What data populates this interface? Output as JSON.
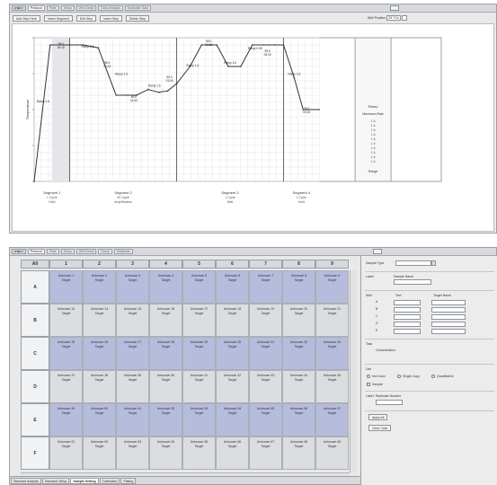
{
  "top": {
    "tabs": [
      "ʟғʙᴍ ʏ",
      "Protocol",
      "Plate",
      "Setup",
      "Well Detail",
      "Data Analysis",
      "Multiplate Data"
    ],
    "toolbar": [
      "Add Step Here",
      "Insert Segment",
      "Edit Step",
      "Insert Step",
      "Delete Step"
    ],
    "right_label": "Well Position",
    "right_value": "25 °C/s"
  },
  "chart_data": {
    "type": "line",
    "title": "",
    "xlabel": "",
    "ylabel": "Temperature",
    "ylim": [
      0,
      100
    ],
    "steps": [
      {
        "name": "Segment 1",
        "lines": [
          "1 Cycle",
          "Hold"
        ],
        "x_range": [
          0,
          40
        ]
      },
      {
        "name": "Segment 2",
        "lines": [
          "40 Cycle",
          "Amplification"
        ],
        "x_range": [
          40,
          160
        ]
      },
      {
        "name": "Segment 3",
        "lines": [
          "1 Cycle",
          "Melt"
        ],
        "x_range": [
          160,
          280
        ]
      },
      {
        "name": "Segment 4",
        "lines": [
          "1 Cycle",
          "Hold"
        ],
        "x_range": [
          280,
          320
        ]
      }
    ],
    "series": [
      {
        "name": "Temperature",
        "x": [
          0,
          18,
          40,
          55,
          72,
          92,
          105,
          115,
          128,
          140,
          150,
          160,
          175,
          188,
          205,
          218,
          232,
          245,
          258,
          270,
          280,
          292,
          302,
          320
        ],
        "y": [
          0,
          95,
          95,
          95,
          93,
          60,
          60,
          60,
          64,
          62,
          63,
          68,
          80,
          95,
          95,
          80,
          80,
          95,
          95,
          95,
          95,
          72,
          50,
          50
        ]
      }
    ],
    "point_labels": [
      {
        "x": 10,
        "y": 55,
        "text": "Ramp 1.6"
      },
      {
        "x": 30,
        "y": 95,
        "text": "95.0\n00:15"
      },
      {
        "x": 60,
        "y": 93,
        "text": "Ramp 1.6"
      },
      {
        "x": 82,
        "y": 82,
        "text": "95.0\n00:15"
      },
      {
        "x": 98,
        "y": 74,
        "text": "Ramp 1.6"
      },
      {
        "x": 112,
        "y": 58,
        "text": "60.0\n01:00"
      },
      {
        "x": 135,
        "y": 66,
        "text": "Ramp 1.6"
      },
      {
        "x": 152,
        "y": 72,
        "text": "60.0\n01:00"
      },
      {
        "x": 178,
        "y": 80,
        "text": "Ramp 1.6"
      },
      {
        "x": 196,
        "y": 97,
        "text": "95.0\n00:15"
      },
      {
        "x": 220,
        "y": 82,
        "text": "Ramp 1.6"
      },
      {
        "x": 248,
        "y": 92,
        "text": "Ramp 0.05"
      },
      {
        "x": 262,
        "y": 90,
        "text": "95.0\n00:15"
      },
      {
        "x": 292,
        "y": 74,
        "text": "Ramp 1.6"
      },
      {
        "x": 306,
        "y": 50,
        "text": "50.0\n00:30"
      }
    ],
    "legend": {
      "title": "Ramp",
      "subtitle": "Maximum Rate",
      "items": [
        "1.6",
        "1.6",
        "1.6",
        "1.6",
        "1.6",
        "1.6",
        "1.6",
        "1.6",
        "1.6",
        "1.6"
      ],
      "footer": "Range"
    }
  },
  "bottom": {
    "tabs": [
      "ʟғʙᴍ ʏ",
      "Protocol",
      "Plate",
      "Setup",
      "Well Detail",
      "Ramp",
      "Multiplate"
    ],
    "grid": {
      "corner": "All",
      "columns": [
        "1",
        "2",
        "3",
        "4",
        "5",
        "6",
        "7",
        "8",
        "9"
      ],
      "rows": [
        {
          "label": "A",
          "cells": [
            "Unknown 1\nTarget",
            "Unknown 2\nTarget",
            "Unknown 3\nTarget",
            "Unknown 4\nTarget",
            "Unknown 5\nTarget",
            "Unknown 6\nTarget",
            "Unknown 7\nTarget",
            "Unknown 8\nTarget",
            "Unknown 9\nTarget"
          ],
          "shade": "blue"
        },
        {
          "label": "B",
          "cells": [
            "Unknown 13\nTarget",
            "Unknown 14\nTarget",
            "Unknown 15\nTarget",
            "Unknown 16\nTarget",
            "Unknown 17\nTarget",
            "Unknown 18\nTarget",
            "Unknown 19\nTarget",
            "Unknown 20\nTarget",
            "Unknown 21\nTarget"
          ],
          "shade": "grey"
        },
        {
          "label": "C",
          "cells": [
            "Unknown 25\nTarget",
            "Unknown 26\nTarget",
            "Unknown 27\nTarget",
            "Unknown 28\nTarget",
            "Unknown 29\nTarget",
            "Unknown 30\nTarget",
            "Unknown 31\nTarget",
            "Unknown 32\nTarget",
            "Unknown 33\nTarget"
          ],
          "shade": "blue"
        },
        {
          "label": "D",
          "cells": [
            "Unknown 37\nTarget",
            "Unknown 38\nTarget",
            "Unknown 39\nTarget",
            "Unknown 40\nTarget",
            "Unknown 41\nTarget",
            "Unknown 42\nTarget",
            "Unknown 43\nTarget",
            "Unknown 44\nTarget",
            "Unknown 45\nTarget"
          ],
          "shade": "grey"
        },
        {
          "label": "E",
          "cells": [
            "Unknown 49\nTarget",
            "Unknown 50\nTarget",
            "Unknown 51\nTarget",
            "Unknown 52\nTarget",
            "Unknown 53\nTarget",
            "Unknown 54\nTarget",
            "Unknown 55\nTarget",
            "Unknown 56\nTarget",
            "Unknown 57\nTarget"
          ],
          "shade": "blue"
        },
        {
          "label": "F",
          "cells": [
            "Unknown 61\nTarget",
            "Unknown 62\nTarget",
            "Unknown 63\nTarget",
            "Unknown 64\nTarget",
            "Unknown 65\nTarget",
            "Unknown 66\nTarget",
            "Unknown 67\nTarget",
            "Unknown 68\nTarget",
            "Unknown 69\nTarget"
          ],
          "shade": "grey"
        }
      ]
    },
    "bottom_tabs": [
      "Standard Analysis",
      "Standard Setup",
      "Sample Setting",
      "Calibration",
      "Plating"
    ],
    "panel": {
      "sample_type_label": "Sample Type",
      "sample_type_value": "",
      "name_label": "Label",
      "name_value": "Sample Name",
      "target_label": "Well",
      "target_col1": "Text",
      "target_col2": "Target Name",
      "target_rows": [
        "A",
        "B",
        "C",
        "D",
        "E"
      ],
      "notes_label": "Task",
      "notes_value": "Concentration",
      "mode_label": "Use",
      "radio1": "Not Used",
      "radio2": "Single Copy",
      "radio3": "Quantitative",
      "check_label": "Sample",
      "dye_label": "Label",
      "dye_value": "Replicate Number",
      "btn1": "Apply All",
      "btn2": "Clear Cells"
    }
  }
}
